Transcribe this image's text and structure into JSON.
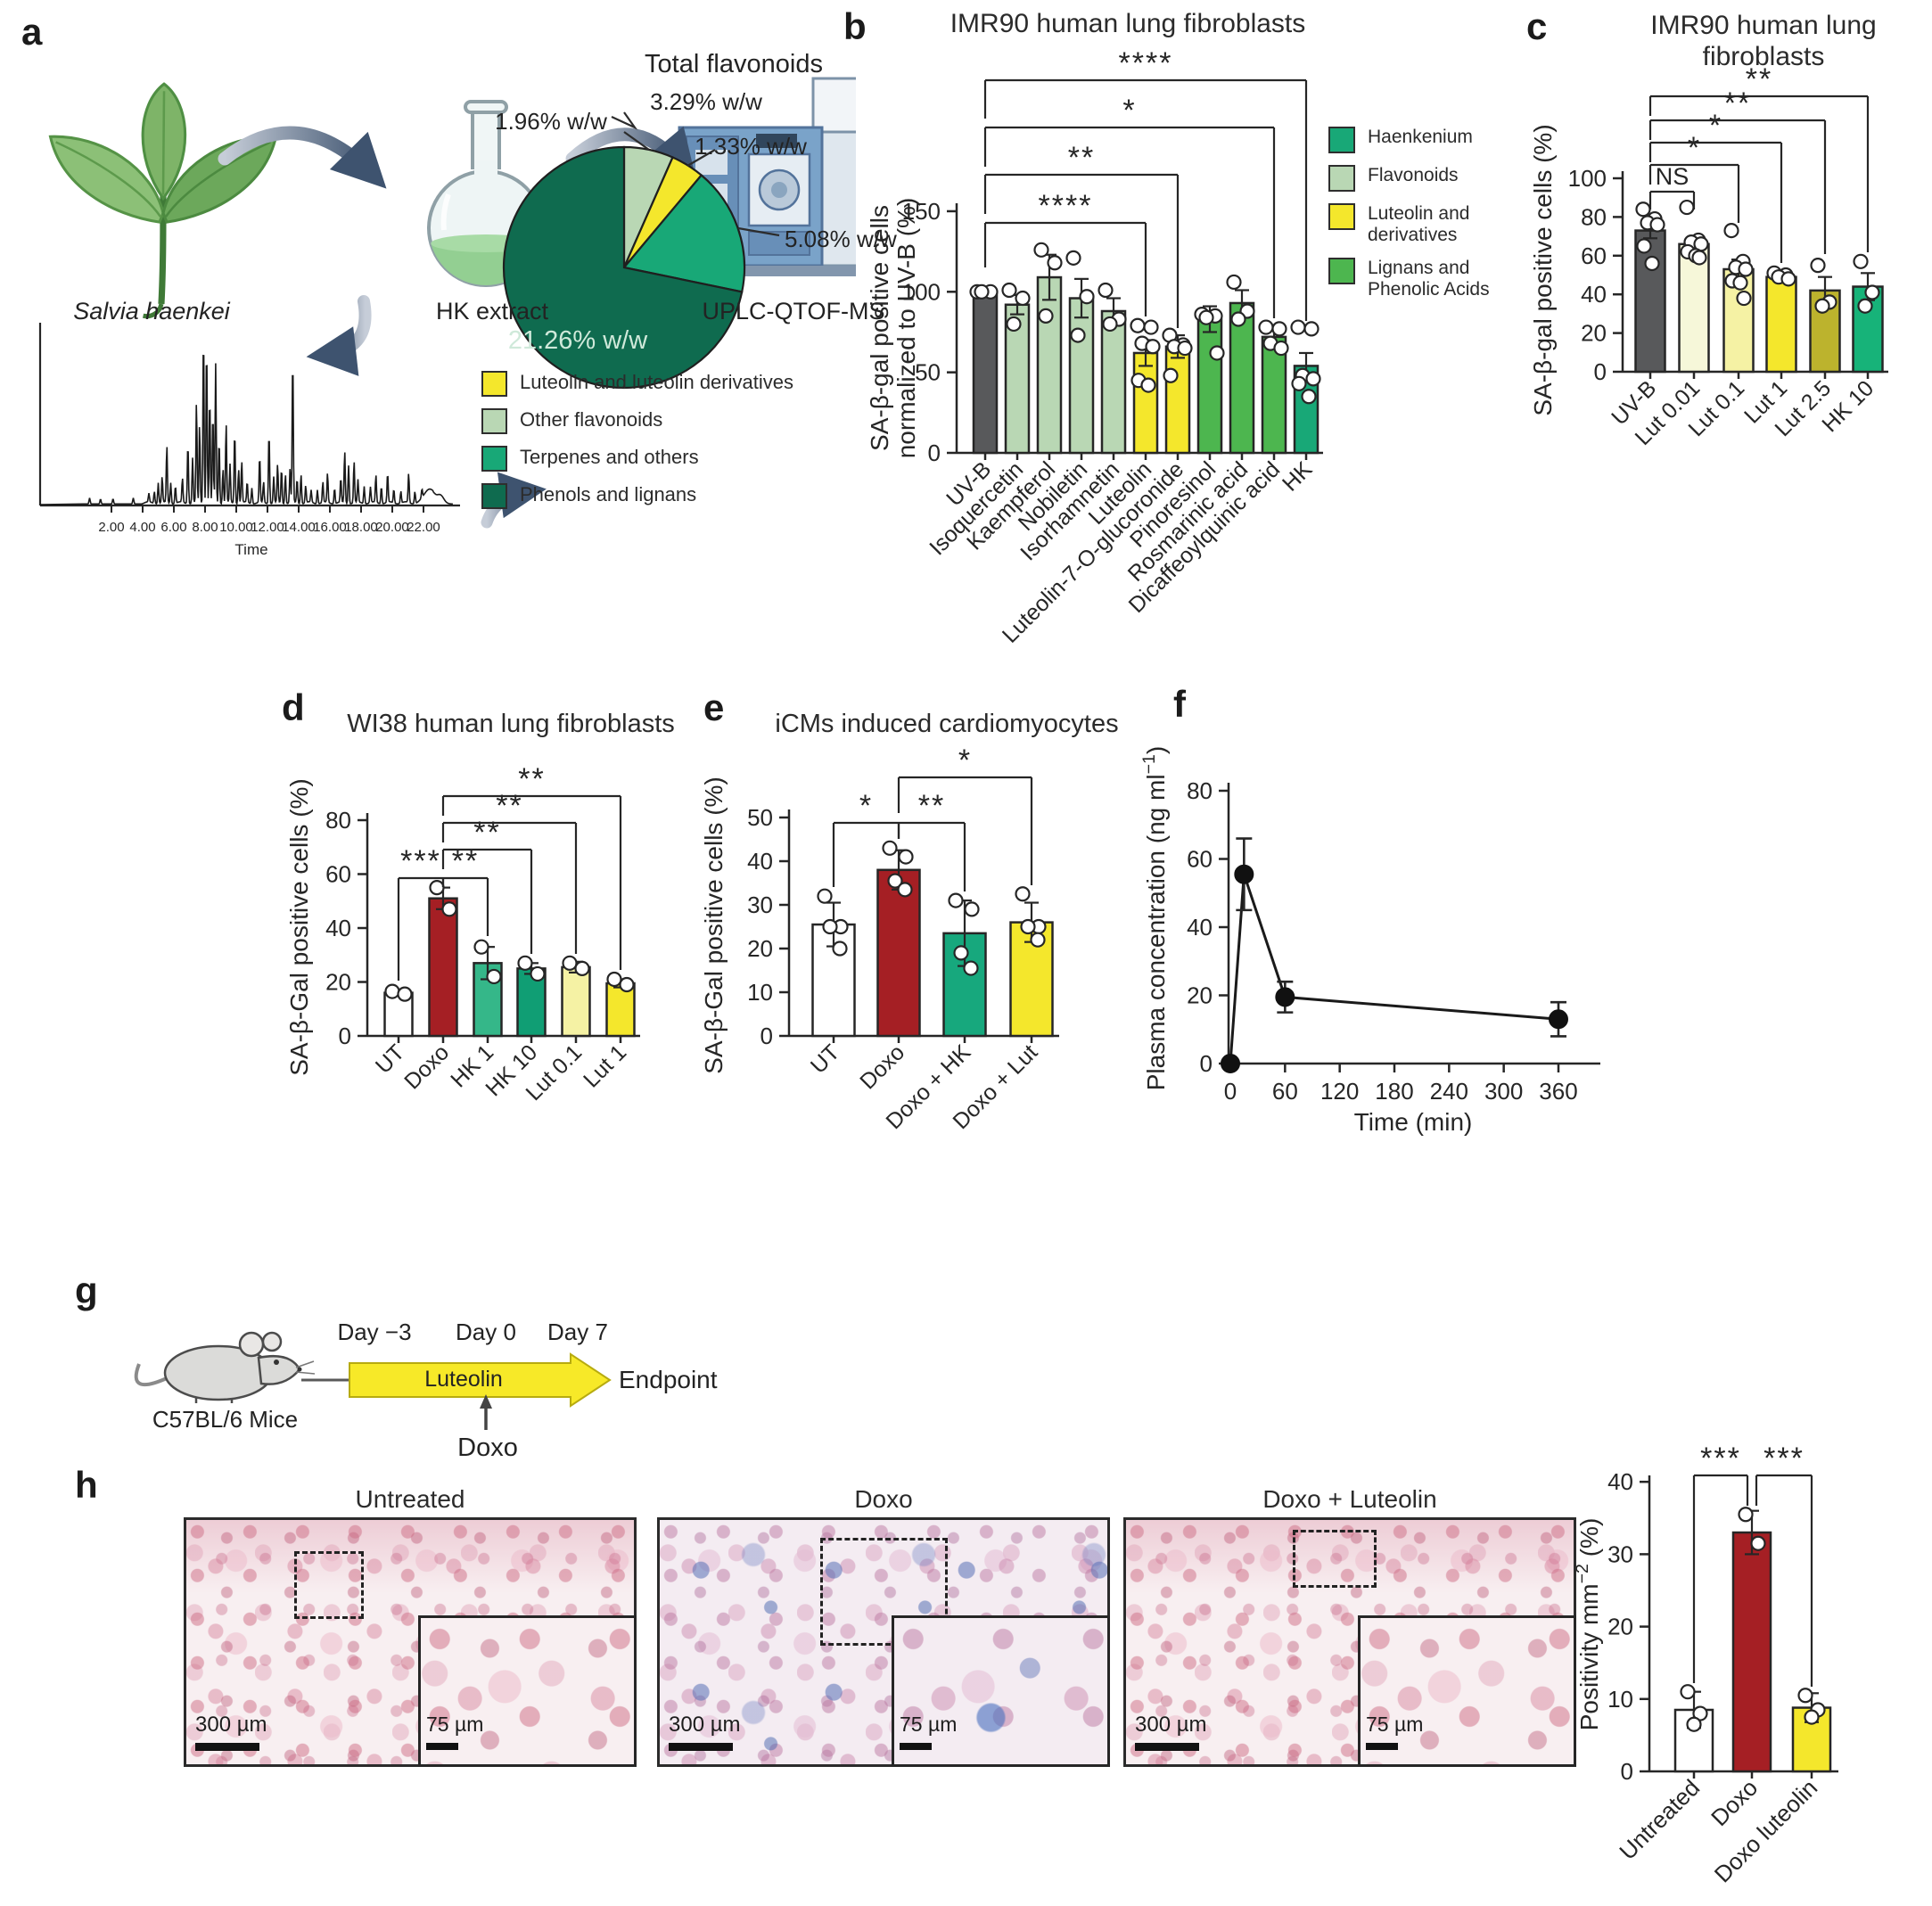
{
  "palette": {
    "dark_green": "#0f6b4f",
    "teal_green": "#18a877",
    "sage_green": "#b9d7b4",
    "lignan_green": "#4db64f",
    "yellow": "#f4e72c",
    "pale_yellow": "#f5f2a4",
    "very_pale_yellow": "#f6f7d9",
    "olive_yellow": "#bcb32d",
    "doxo_red": "#a51f24",
    "uvb_gray": "#58595b",
    "axis_ink": "#262626",
    "arrow_slate": "#3e536f",
    "timeline_yellow": "#f7e928"
  },
  "panel_a": {
    "letter": "a",
    "workflow": {
      "plant_label": "Salvia haenkei",
      "extract_label": "HK extract",
      "instrument_label": "UPLC-QTOF-MS"
    },
    "chromatogram": {
      "xlabel": "Time",
      "xticks": [
        "2.00",
        "4.00",
        "6.00",
        "8.00",
        "10.00",
        "12.00",
        "14.00",
        "16.00",
        "18.00",
        "20.00",
        "22.00"
      ],
      "peaks": [
        [
          0.6,
          0.035
        ],
        [
          1.3,
          0.028
        ],
        [
          2.1,
          0.03
        ],
        [
          3.4,
          0.035
        ],
        [
          4.4,
          0.05
        ],
        [
          4.75,
          0.07
        ],
        [
          5.0,
          0.12
        ],
        [
          5.25,
          0.15
        ],
        [
          5.55,
          0.33
        ],
        [
          5.8,
          0.12
        ],
        [
          6.1,
          0.1
        ],
        [
          6.55,
          0.14
        ],
        [
          6.9,
          0.35
        ],
        [
          7.2,
          0.26
        ],
        [
          7.45,
          0.58
        ],
        [
          7.65,
          0.45
        ],
        [
          7.9,
          1.0
        ],
        [
          8.1,
          0.93
        ],
        [
          8.3,
          0.62
        ],
        [
          8.5,
          0.52
        ],
        [
          8.68,
          0.8
        ],
        [
          8.9,
          0.37
        ],
        [
          9.15,
          0.2
        ],
        [
          9.35,
          0.46
        ],
        [
          9.6,
          0.22
        ],
        [
          9.9,
          0.42
        ],
        [
          10.15,
          0.2
        ],
        [
          10.35,
          0.24
        ],
        [
          10.7,
          0.12
        ],
        [
          11.0,
          0.09
        ],
        [
          11.5,
          0.27
        ],
        [
          11.75,
          0.12
        ],
        [
          12.1,
          0.42
        ],
        [
          12.4,
          0.15
        ],
        [
          12.65,
          0.22
        ],
        [
          12.9,
          0.2
        ],
        [
          13.15,
          0.17
        ],
        [
          13.45,
          0.2
        ],
        [
          13.62,
          0.85
        ],
        [
          13.9,
          0.14
        ],
        [
          14.15,
          0.17
        ],
        [
          14.45,
          0.1
        ],
        [
          14.8,
          0.07
        ],
        [
          15.2,
          0.08
        ],
        [
          15.55,
          0.12
        ],
        [
          15.85,
          0.17
        ],
        [
          16.3,
          0.09
        ],
        [
          16.7,
          0.14
        ],
        [
          16.95,
          0.3
        ],
        [
          17.2,
          0.22
        ],
        [
          17.55,
          0.24
        ],
        [
          17.8,
          0.13
        ],
        [
          18.2,
          0.1
        ],
        [
          18.6,
          0.09
        ],
        [
          18.95,
          0.16
        ],
        [
          19.3,
          0.1
        ],
        [
          19.7,
          0.17
        ],
        [
          20.1,
          0.08
        ],
        [
          20.55,
          0.07
        ],
        [
          21.05,
          0.17
        ],
        [
          21.45,
          0.07
        ],
        [
          21.9,
          0.05
        ],
        [
          22.4,
          0.085,
          0.45
        ],
        [
          23.1,
          0.045,
          0.3
        ]
      ]
    },
    "pie": {
      "title": "Total flavonoids",
      "combined_callout": "3.29% w/w",
      "slices": [
        {
          "label": "Other flavonoids",
          "value": 1.96,
          "text": "1.96% w/w",
          "color": "#b9d7b4"
        },
        {
          "label": "Luteolin and luteolin derivatives",
          "value": 1.33,
          "text": "1.33% w/w",
          "color": "#f4e72c"
        },
        {
          "label": "Terpenes and others",
          "value": 5.08,
          "text": "5.08% w/w",
          "color": "#18a877"
        },
        {
          "label": "Phenols and lignans",
          "value": 21.26,
          "text": "21.26% w/w",
          "color": "#0f6b4f"
        }
      ],
      "legend": [
        {
          "label": "Luteolin and luteolin derivatives",
          "color": "#f4e72c"
        },
        {
          "label": "Other flavonoids",
          "color": "#b9d7b4"
        },
        {
          "label": "Terpenes and others",
          "color": "#18a877"
        },
        {
          "label": "Phenols and lignans",
          "color": "#0f6b4f"
        }
      ]
    }
  },
  "panel_b": {
    "letter": "b",
    "title": "IMR90 human lung fibroblasts",
    "ylabel_lines": [
      "SA-β-gal positive cells",
      "normalized to UV-B (%)"
    ],
    "yticks": [
      0,
      50,
      100,
      150
    ],
    "categories": [
      "UV-B",
      "Isoquercetin",
      "Kaempferol",
      "Nobiletin",
      "Isorhamnetin",
      "Luteolin",
      "Luteolin-7-O-glucoronide",
      "Pinoresinol",
      "Rosmarinic acid",
      "Dicaffeoylquinic acid",
      "HK"
    ],
    "values": [
      100,
      92,
      109,
      96,
      88,
      62,
      66,
      83,
      93,
      72,
      54
    ],
    "errors": [
      0,
      6,
      14,
      12,
      8,
      8,
      7,
      8,
      8,
      5,
      8
    ],
    "colors": [
      "#58595b",
      "#b9d7b4",
      "#b9d7b4",
      "#b9d7b4",
      "#b9d7b4",
      "#f4e72c",
      "#f4e72c",
      "#4db64f",
      "#4db64f",
      "#4db64f",
      "#18a877"
    ],
    "points": [
      [
        100,
        100,
        100
      ],
      [
        101,
        96,
        80
      ],
      [
        126,
        118,
        85
      ],
      [
        121,
        97,
        73
      ],
      [
        101,
        83,
        80
      ],
      [
        79,
        78,
        68,
        66,
        45,
        42
      ],
      [
        73,
        67,
        66,
        65,
        48
      ],
      [
        86,
        85,
        84,
        62
      ],
      [
        106,
        88,
        83
      ],
      [
        78,
        77,
        68,
        65
      ],
      [
        78,
        77,
        48,
        46,
        43,
        35
      ]
    ],
    "significance": [
      {
        "compare": [
          "UV-B",
          "HK"
        ],
        "label": "****"
      },
      {
        "compare": [
          "UV-B",
          "Dicaffeoylquinic acid"
        ],
        "label": "*"
      },
      {
        "compare": [
          "UV-B",
          "Luteolin-7-O-glucoronide"
        ],
        "label": "**"
      },
      {
        "compare": [
          "UV-B",
          "Luteolin"
        ],
        "label": "****"
      }
    ],
    "legend": [
      {
        "label_lines": [
          "Haenkenium"
        ],
        "color": "#18a877"
      },
      {
        "label_lines": [
          "Flavonoids"
        ],
        "color": "#b9d7b4"
      },
      {
        "label_lines": [
          "Luteolin and derivatives"
        ],
        "color": "#f4e72c"
      },
      {
        "label_lines": [
          "Lignans and",
          "Phenolic Acids"
        ],
        "color": "#4db64f"
      }
    ]
  },
  "panel_c": {
    "letter": "c",
    "title": "IMR90 human lung fibroblasts",
    "ylabel": "SA-β-gal positive cells (%)",
    "yticks": [
      0,
      20,
      40,
      60,
      80,
      100
    ],
    "categories": [
      "UV-B",
      "Lut 0.01",
      "Lut 0.1",
      "Lut 1",
      "Lut 2.5",
      "HK 10"
    ],
    "values": [
      73,
      66,
      53,
      49,
      42,
      44
    ],
    "errors": [
      4,
      3,
      5,
      2,
      7,
      7
    ],
    "colors": [
      "#58595b",
      "#f6f7d9",
      "#f5f2a4",
      "#f4e72c",
      "#bcb32d",
      "#17b379"
    ],
    "points": [
      [
        84,
        79,
        77,
        76,
        65,
        56
      ],
      [
        85,
        68,
        67,
        66,
        62,
        60,
        59
      ],
      [
        73,
        57,
        54,
        53,
        47,
        46,
        38
      ],
      [
        51,
        50,
        49,
        48
      ],
      [
        55,
        36,
        34
      ],
      [
        57,
        41,
        34
      ]
    ],
    "significance": [
      {
        "compare": [
          "UV-B",
          "Lut 0.01"
        ],
        "label": "NS"
      },
      {
        "compare": [
          "UV-B",
          "Lut 0.1"
        ],
        "label": "*"
      },
      {
        "compare": [
          "UV-B",
          "Lut 1"
        ],
        "label": "*"
      },
      {
        "compare": [
          "UV-B",
          "Lut 2.5"
        ],
        "label": "**"
      },
      {
        "compare": [
          "UV-B",
          "HK 10"
        ],
        "label": "**"
      }
    ]
  },
  "panel_d": {
    "letter": "d",
    "title": "WI38 human lung fibroblasts",
    "ylabel": "SA-β-Gal positive cells (%)",
    "yticks": [
      0,
      20,
      40,
      60,
      80
    ],
    "categories": [
      "UT",
      "Doxo",
      "HK 1",
      "HK 10",
      "Lut 0.1",
      "Lut 1"
    ],
    "values": [
      16,
      51,
      27,
      25,
      25.5,
      19.5
    ],
    "errors": [
      1,
      4,
      6,
      2,
      2,
      1.5
    ],
    "colors": [
      "#ffffff",
      "#a51f24",
      "#35b789",
      "#109e74",
      "#f5f2a4",
      "#f4e72c"
    ],
    "points": [
      [
        16.5,
        15.5
      ],
      [
        55,
        47
      ],
      [
        33,
        22
      ],
      [
        27,
        23
      ],
      [
        27,
        25
      ],
      [
        21,
        19
      ]
    ],
    "significance": [
      {
        "compare": [
          "UT",
          "Doxo"
        ],
        "label": "***"
      },
      {
        "compare": [
          "Doxo",
          "HK 1"
        ],
        "label": "**"
      },
      {
        "compare": [
          "Doxo",
          "HK 10"
        ],
        "label": "**"
      },
      {
        "compare": [
          "Doxo",
          "Lut 0.1"
        ],
        "label": "**"
      },
      {
        "compare": [
          "Doxo",
          "Lut 1"
        ],
        "label": "**"
      }
    ]
  },
  "panel_e": {
    "letter": "e",
    "title": "iCMs induced cardiomyocytes",
    "ylabel": "SA-β-Gal positive cells (%)",
    "yticks": [
      0,
      10,
      20,
      30,
      40,
      50
    ],
    "categories": [
      "UT",
      "Doxo",
      "Doxo + HK",
      "Doxo + Lut"
    ],
    "values": [
      25.5,
      38,
      23.5,
      26
    ],
    "errors": [
      5,
      4.5,
      7.5,
      4.5
    ],
    "colors": [
      "#ffffff",
      "#a51f24",
      "#17a87d",
      "#f4e72c"
    ],
    "points": [
      [
        32,
        25,
        25,
        20
      ],
      [
        43,
        41,
        35.5,
        33.5
      ],
      [
        31,
        29,
        19,
        15.5
      ],
      [
        32.5,
        25,
        25,
        22
      ]
    ],
    "significance": [
      {
        "compare": [
          "UT",
          "Doxo"
        ],
        "label": "*"
      },
      {
        "compare": [
          "Doxo",
          "Doxo + HK"
        ],
        "label": "**"
      },
      {
        "compare": [
          "Doxo",
          "Doxo + Lut"
        ],
        "label": "*"
      }
    ]
  },
  "panel_f": {
    "letter": "f",
    "ylabel_segments": [
      {
        "t": "Plasma concentration (ng ml"
      },
      {
        "t": "−1",
        "sup": true
      },
      {
        "t": ")"
      }
    ],
    "xlabel": "Time (min)",
    "xticks": [
      0,
      60,
      120,
      180,
      240,
      300,
      360
    ],
    "yticks": [
      0,
      20,
      40,
      60,
      80
    ],
    "x": [
      0,
      15,
      60,
      360
    ],
    "y": [
      0,
      55.5,
      19.5,
      13
    ],
    "err": [
      0,
      10.5,
      4.5,
      5
    ]
  },
  "panel_g": {
    "letter": "g",
    "mouse_label": "C57BL/6 Mice",
    "day_labels": [
      "Day −3",
      "Day 0",
      "Day 7"
    ],
    "bar_label": "Luteolin",
    "endpoint_label": "Endpoint",
    "injection_label": "Doxo"
  },
  "panel_h": {
    "letter": "h",
    "images": [
      {
        "title": "Untreated"
      },
      {
        "title": "Doxo"
      },
      {
        "title": "Doxo + Luteolin"
      }
    ],
    "scale_main": "300 µm",
    "scale_inset": "75 µm",
    "chart": {
      "ylabel_segments": [
        {
          "t": "Positivity mm"
        },
        {
          "t": "−2",
          "sup": true
        },
        {
          "t": " (%)"
        }
      ],
      "yticks": [
        0,
        10,
        20,
        30,
        40
      ],
      "categories": [
        "Untreated",
        "Doxo",
        "Doxo luteolin"
      ],
      "values": [
        8.5,
        33,
        8.8
      ],
      "errors": [
        2.5,
        3,
        2
      ],
      "colors": [
        "#ffffff",
        "#a51f24",
        "#f4e72c"
      ],
      "points": [
        [
          11,
          8,
          6.5
        ],
        [
          35.5,
          31.5
        ],
        [
          10.5,
          8.5,
          7.5
        ]
      ],
      "significance": [
        {
          "compare": [
            "Untreated",
            "Doxo"
          ],
          "label": "***"
        },
        {
          "compare": [
            "Doxo",
            "Doxo luteolin"
          ],
          "label": "***"
        }
      ]
    }
  },
  "chart_data": [
    {
      "id": "a_pie",
      "type": "pie",
      "title": "Total flavonoids",
      "labels": [
        "Other flavonoids",
        "Luteolin and luteolin derivatives",
        "Terpenes and others",
        "Phenols and lignans"
      ],
      "values": [
        1.96,
        1.33,
        5.08,
        21.26
      ],
      "unit": "% w/w",
      "combined_callout": "3.29% w/w"
    },
    {
      "id": "a_chromatogram",
      "type": "line",
      "xlabel": "Time",
      "x_range": [
        0,
        24
      ],
      "note": "UPLC-QTOF-MS total ion chromatogram, major peaks at ~7.9 and ~13.6 min"
    },
    {
      "id": "b",
      "type": "bar",
      "title": "IMR90 human lung fibroblasts",
      "ylabel": "SA-β-gal positive cells normalized to UV-B (%)",
      "ylim": [
        0,
        150
      ],
      "categories": [
        "UV-B",
        "Isoquercetin",
        "Kaempferol",
        "Nobiletin",
        "Isorhamnetin",
        "Luteolin",
        "Luteolin-7-O-glucoronide",
        "Pinoresinol",
        "Rosmarinic acid",
        "Dicaffeoylquinic acid",
        "HK"
      ],
      "values": [
        100,
        92,
        109,
        96,
        88,
        62,
        66,
        83,
        93,
        72,
        54
      ]
    },
    {
      "id": "c",
      "type": "bar",
      "title": "IMR90 human lung fibroblasts",
      "ylabel": "SA-β-gal positive cells (%)",
      "ylim": [
        0,
        100
      ],
      "categories": [
        "UV-B",
        "Lut 0.01",
        "Lut 0.1",
        "Lut 1",
        "Lut 2.5",
        "HK 10"
      ],
      "values": [
        73,
        66,
        53,
        49,
        42,
        44
      ]
    },
    {
      "id": "d",
      "type": "bar",
      "title": "WI38 human lung fibroblasts",
      "ylabel": "SA-β-Gal positive cells (%)",
      "ylim": [
        0,
        80
      ],
      "categories": [
        "UT",
        "Doxo",
        "HK 1",
        "HK 10",
        "Lut 0.1",
        "Lut 1"
      ],
      "values": [
        16,
        51,
        27,
        25,
        25.5,
        19.5
      ]
    },
    {
      "id": "e",
      "type": "bar",
      "title": "iCMs induced cardiomyocytes",
      "ylabel": "SA-β-Gal positive cells (%)",
      "ylim": [
        0,
        50
      ],
      "categories": [
        "UT",
        "Doxo",
        "Doxo + HK",
        "Doxo + Lut"
      ],
      "values": [
        25.5,
        38,
        23.5,
        26
      ]
    },
    {
      "id": "f",
      "type": "line",
      "xlabel": "Time (min)",
      "ylabel": "Plasma concentration (ng ml−1)",
      "xlim": [
        0,
        360
      ],
      "ylim": [
        0,
        80
      ],
      "x": [
        0,
        15,
        60,
        360
      ],
      "y": [
        0,
        55.5,
        19.5,
        13
      ],
      "err": [
        0,
        10.5,
        4.5,
        5
      ]
    },
    {
      "id": "h",
      "type": "bar",
      "ylabel": "Positivity mm−2 (%)",
      "ylim": [
        0,
        40
      ],
      "categories": [
        "Untreated",
        "Doxo",
        "Doxo luteolin"
      ],
      "values": [
        8.5,
        33,
        8.8
      ]
    }
  ]
}
